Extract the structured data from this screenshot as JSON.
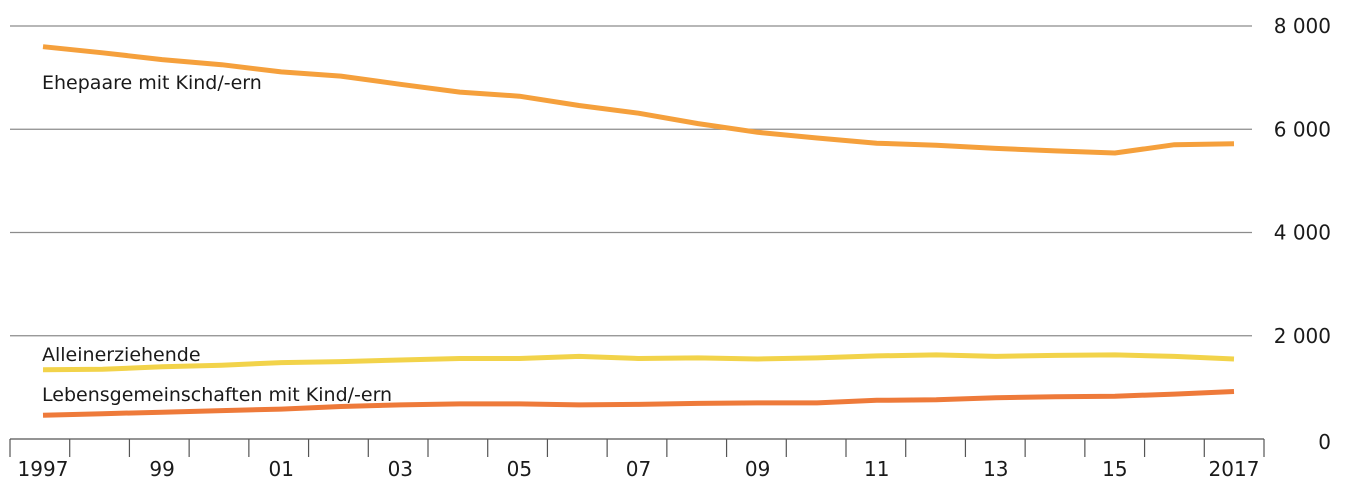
{
  "chart_data": {
    "type": "line",
    "x": [
      1997,
      1998,
      1999,
      2000,
      2001,
      2002,
      2003,
      2004,
      2005,
      2006,
      2007,
      2008,
      2009,
      2010,
      2011,
      2012,
      2013,
      2014,
      2015,
      2016,
      2017
    ],
    "x_tick_labels": [
      "1997",
      "",
      "99",
      "",
      "01",
      "",
      "03",
      "",
      "05",
      "",
      "07",
      "",
      "09",
      "",
      "11",
      "",
      "13",
      "",
      "15",
      "",
      "2017"
    ],
    "ylim": [
      0,
      8000
    ],
    "y_ticks": [
      0,
      2000,
      4000,
      6000,
      8000
    ],
    "y_tick_labels": [
      "0",
      "2 000",
      "4 000",
      "6 000",
      "8 000"
    ],
    "grid": true,
    "title": "",
    "xlabel": "",
    "ylabel": "",
    "series": [
      {
        "name": "Ehepaare mit Kind/-ern",
        "color": "#f5a03c",
        "values": [
          7600,
          7480,
          7350,
          7250,
          7110,
          7030,
          6870,
          6720,
          6640,
          6460,
          6310,
          6110,
          5940,
          5830,
          5730,
          5690,
          5630,
          5580,
          5540,
          5700,
          5720
        ]
      },
      {
        "name": "Alleinerziehende",
        "color": "#f2d34a",
        "values": [
          1340,
          1350,
          1400,
          1430,
          1480,
          1500,
          1530,
          1560,
          1560,
          1600,
          1560,
          1570,
          1550,
          1570,
          1610,
          1630,
          1600,
          1620,
          1630,
          1600,
          1550
        ]
      },
      {
        "name": "Lebensgemeinschaften mit Kind/-ern",
        "color": "#ee7a3a",
        "values": [
          460,
          490,
          520,
          550,
          580,
          630,
          660,
          680,
          680,
          660,
          670,
          690,
          700,
          700,
          750,
          760,
          800,
          820,
          830,
          870,
          920
        ]
      }
    ]
  }
}
